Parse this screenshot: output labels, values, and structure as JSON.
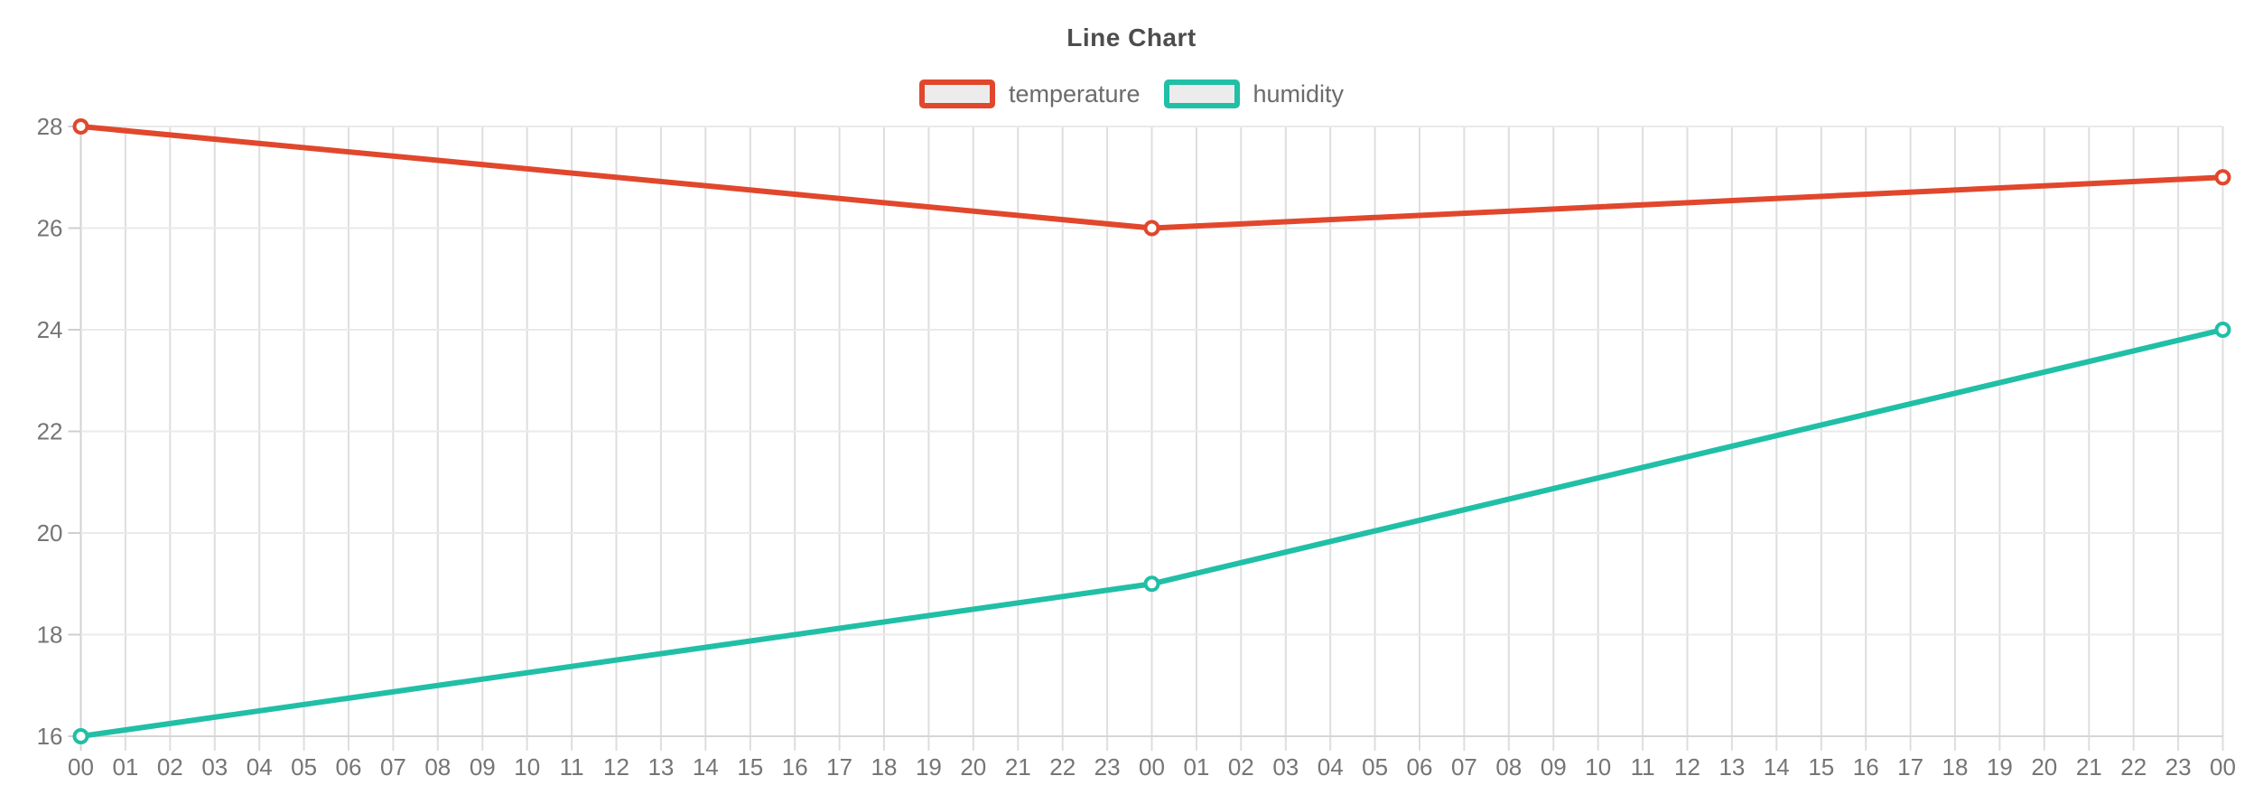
{
  "chart_data": {
    "type": "line",
    "title": "Line Chart",
    "xlabel": "",
    "ylabel": "",
    "ylim": [
      16,
      28
    ],
    "y_ticks": [
      16,
      18,
      20,
      22,
      24,
      26,
      28
    ],
    "x_tick_labels": [
      "00",
      "01",
      "02",
      "03",
      "04",
      "05",
      "06",
      "07",
      "08",
      "09",
      "10",
      "11",
      "12",
      "13",
      "14",
      "15",
      "16",
      "17",
      "18",
      "19",
      "20",
      "21",
      "22",
      "23",
      "00",
      "01",
      "02",
      "03",
      "04",
      "05",
      "06",
      "07",
      "08",
      "09",
      "10",
      "11",
      "12",
      "13",
      "14",
      "15",
      "16",
      "17",
      "18",
      "19",
      "20",
      "21",
      "22",
      "23",
      "00"
    ],
    "grid": true,
    "legend_position": "top-center",
    "marker_style": "open-circle",
    "series": [
      {
        "name": "temperature",
        "color": "#e1472c",
        "points": [
          {
            "x_index": 0,
            "x_label": "00",
            "value": 28
          },
          {
            "x_index": 24,
            "x_label": "00",
            "value": 26
          },
          {
            "x_index": 48,
            "x_label": "00",
            "value": 27
          }
        ]
      },
      {
        "name": "humidity",
        "color": "#20bfa6",
        "points": [
          {
            "x_index": 0,
            "x_label": "00",
            "value": 16
          },
          {
            "x_index": 24,
            "x_label": "00",
            "value": 19
          },
          {
            "x_index": 48,
            "x_label": "00",
            "value": 24
          }
        ]
      }
    ]
  }
}
